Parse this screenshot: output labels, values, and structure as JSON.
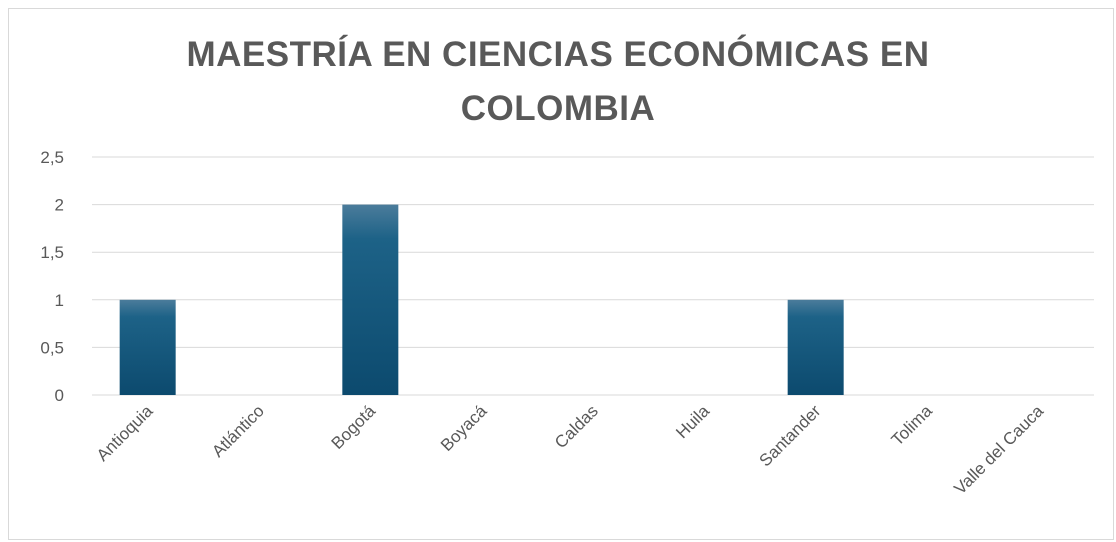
{
  "chart_data": {
    "type": "bar",
    "title": "MAESTRÍA EN CIENCIAS ECONÓMICAS EN COLOMBIA",
    "categories": [
      "Antioquia",
      "Atlántico",
      "Bogotá",
      "Boyacá",
      "Caldas",
      "Huila",
      "Santander",
      "Tolima",
      "Valle del Cauca"
    ],
    "values": [
      1,
      0,
      2,
      0,
      0,
      0,
      1,
      0,
      0
    ],
    "ylim": [
      0,
      2.5
    ],
    "yticks": [
      "0",
      "0,5",
      "1",
      "1,5",
      "2",
      "2,5"
    ],
    "grid": true,
    "legend": "none",
    "colors": {
      "bar_top": "#4b7c9b",
      "bar_bottom": "#0c4a6e",
      "text": "#595959",
      "grid": "#d9d9d9"
    }
  }
}
